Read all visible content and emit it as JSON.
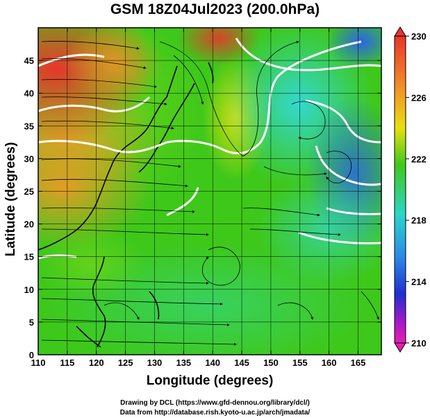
{
  "title": "GSM 18Z04Jul2023 (200.0hPa)",
  "axes": {
    "xlabel": "Longitude (degrees)",
    "ylabel": "Latitude (degrees)",
    "xlim": [
      110,
      169
    ],
    "ylim": [
      0,
      50
    ],
    "xticks": [
      "110",
      "115",
      "120",
      "125",
      "130",
      "135",
      "140",
      "145",
      "150",
      "155",
      "160",
      "165"
    ],
    "yticks": [
      "0",
      "5",
      "10",
      "15",
      "20",
      "25",
      "30",
      "35",
      "40",
      "45"
    ]
  },
  "colorbar": {
    "ticks": [
      "230",
      "226",
      "222",
      "218",
      "214",
      "210"
    ],
    "min": 210,
    "max": 230
  },
  "credits": {
    "line1": "Drawing by DCL (https://www.gfd-dennou.org/library/dcl/)",
    "line2": "Data from http://database.rish.kyoto-u.ac.jp/arch/jmadata/"
  },
  "colors": {
    "warm": "#ee3a2a",
    "orange": "#f39a28",
    "yellow": "#e9e20c",
    "green": "#3ec81a",
    "cyan": "#2bd6c8",
    "blue": "#2a66ea",
    "contour": "#ffffff"
  }
}
